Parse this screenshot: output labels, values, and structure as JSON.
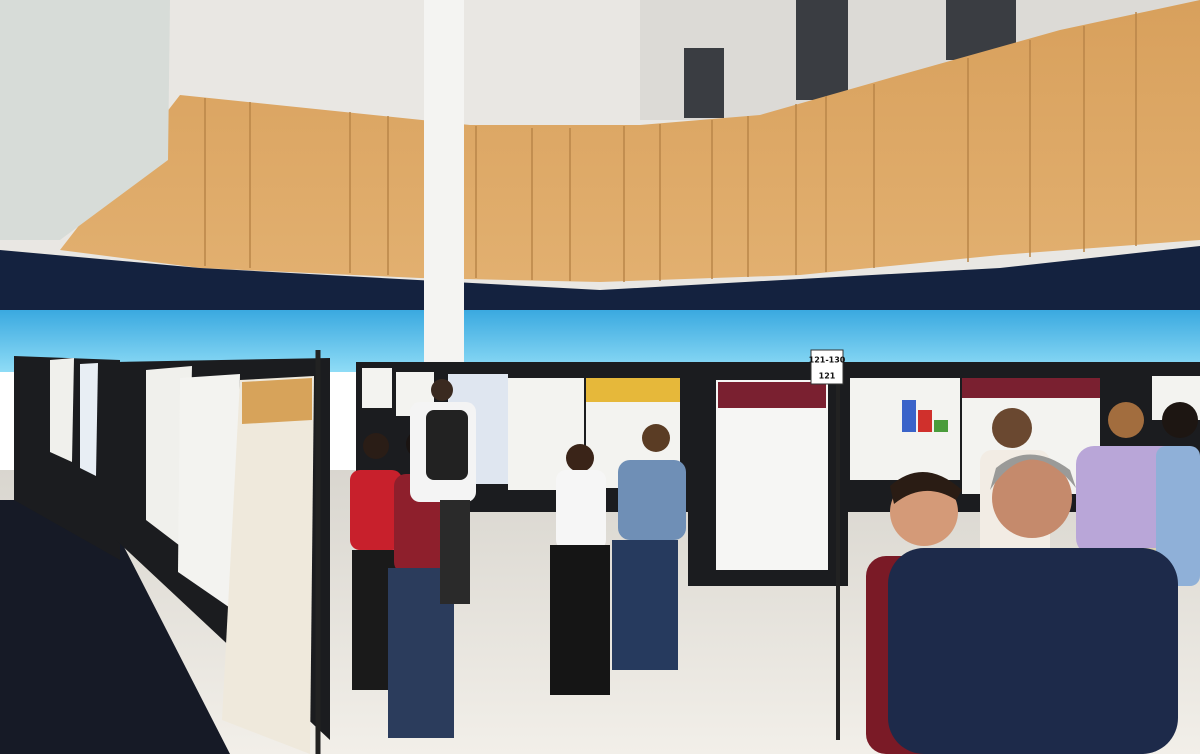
{
  "signs": [
    {
      "label": "121-130"
    },
    {
      "label": "121"
    }
  ]
}
